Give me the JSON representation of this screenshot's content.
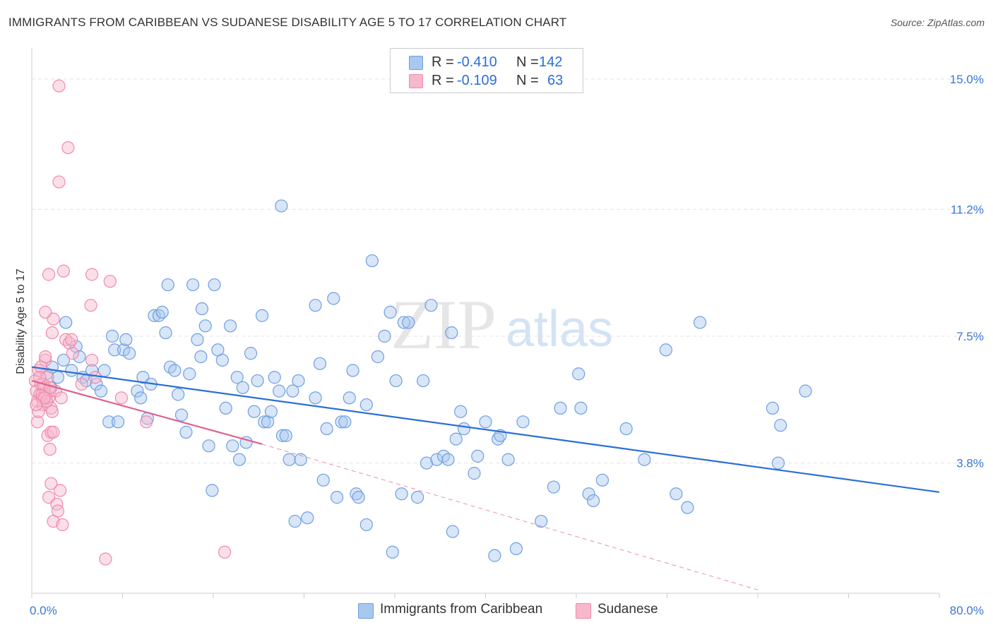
{
  "title": "IMMIGRANTS FROM CARIBBEAN VS SUDANESE DISABILITY AGE 5 TO 17 CORRELATION CHART",
  "source": "Source: ZipAtlas.com",
  "watermark": {
    "zip": "ZIP",
    "atlas": "atlas"
  },
  "legend": {
    "rows": [
      {
        "r_label": "R =",
        "r_value": "-0.410",
        "n_label": "N =",
        "n_value": "142"
      },
      {
        "r_label": "R =",
        "r_value": "-0.109",
        "n_label": "N =",
        "n_value": "63"
      }
    ]
  },
  "bottom_legend": [
    "Immigrants from Caribbean",
    "Sudanese"
  ],
  "colors": {
    "caribbean_fill": "#a9c8f0",
    "caribbean_stroke": "#6f9fe0",
    "caribbean_line": "#2a6fd6",
    "sudanese_fill": "#f7b8cc",
    "sudanese_stroke": "#ee8aab",
    "sudanese_line": "#e0608e",
    "tick_label": "#3a78d4"
  },
  "chart_data": {
    "type": "scatter",
    "title": "IMMIGRANTS FROM CARIBBEAN VS SUDANESE DISABILITY AGE 5 TO 17 CORRELATION CHART",
    "xlabel": "",
    "ylabel": "Disability Age 5 to 17",
    "xlim": [
      0,
      80
    ],
    "ylim": [
      0,
      15.7
    ],
    "x_tick_labels": [
      "0.0%",
      "80.0%"
    ],
    "y_ticks": [
      3.8,
      7.5,
      11.2,
      15.0
    ],
    "y_tick_labels": [
      "3.8%",
      "7.5%",
      "11.2%",
      "15.0%"
    ],
    "grid": true,
    "legend_position": "top-center",
    "series": [
      {
        "name": "Immigrants from Caribbean",
        "r": -0.41,
        "n": 142,
        "trend": {
          "x": [
            0,
            80
          ],
          "y": [
            6.6,
            2.95
          ]
        },
        "points": [
          [
            1.3,
            6.4
          ],
          [
            1.8,
            6.6
          ],
          [
            1.7,
            6.0
          ],
          [
            2.3,
            6.3
          ],
          [
            2.8,
            6.8
          ],
          [
            3.0,
            7.9
          ],
          [
            3.5,
            6.5
          ],
          [
            3.9,
            7.2
          ],
          [
            4.2,
            6.9
          ],
          [
            4.5,
            6.3
          ],
          [
            4.8,
            6.2
          ],
          [
            5.3,
            6.5
          ],
          [
            5.7,
            6.1
          ],
          [
            6.1,
            5.9
          ],
          [
            6.4,
            6.5
          ],
          [
            6.8,
            5.0
          ],
          [
            7.1,
            7.5
          ],
          [
            7.3,
            7.1
          ],
          [
            7.6,
            5.0
          ],
          [
            8.1,
            7.1
          ],
          [
            8.3,
            7.4
          ],
          [
            8.6,
            7.0
          ],
          [
            9.3,
            5.9
          ],
          [
            9.6,
            5.7
          ],
          [
            9.8,
            6.3
          ],
          [
            10.2,
            5.1
          ],
          [
            10.5,
            6.1
          ],
          [
            10.8,
            8.1
          ],
          [
            11.2,
            8.1
          ],
          [
            11.5,
            8.2
          ],
          [
            11.8,
            7.6
          ],
          [
            12.2,
            6.6
          ],
          [
            12.6,
            6.5
          ],
          [
            12.9,
            5.8
          ],
          [
            13.2,
            5.2
          ],
          [
            13.6,
            4.7
          ],
          [
            13.9,
            6.4
          ],
          [
            14.2,
            9.0
          ],
          [
            14.6,
            7.4
          ],
          [
            14.9,
            6.9
          ],
          [
            15.3,
            7.8
          ],
          [
            15.6,
            4.3
          ],
          [
            15.9,
            3.0
          ],
          [
            16.1,
            9.0
          ],
          [
            16.4,
            7.1
          ],
          [
            16.8,
            6.8
          ],
          [
            17.1,
            5.4
          ],
          [
            17.5,
            7.8
          ],
          [
            17.7,
            4.3
          ],
          [
            18.1,
            6.3
          ],
          [
            18.3,
            3.9
          ],
          [
            18.6,
            6.0
          ],
          [
            18.9,
            4.4
          ],
          [
            19.3,
            7.0
          ],
          [
            19.6,
            5.3
          ],
          [
            19.9,
            6.2
          ],
          [
            20.3,
            8.1
          ],
          [
            20.5,
            5.0
          ],
          [
            20.8,
            5.0
          ],
          [
            21.1,
            5.3
          ],
          [
            21.4,
            6.3
          ],
          [
            21.8,
            5.9
          ],
          [
            22.1,
            4.6
          ],
          [
            22.4,
            4.6
          ],
          [
            22.7,
            3.9
          ],
          [
            23.0,
            5.9
          ],
          [
            23.2,
            2.1
          ],
          [
            23.5,
            6.2
          ],
          [
            23.7,
            3.9
          ],
          [
            24.3,
            2.2
          ],
          [
            25.0,
            5.7
          ],
          [
            25.4,
            6.7
          ],
          [
            25.7,
            3.3
          ],
          [
            26.0,
            4.8
          ],
          [
            26.6,
            8.6
          ],
          [
            26.9,
            2.8
          ],
          [
            27.3,
            5.0
          ],
          [
            27.6,
            5.0
          ],
          [
            28.0,
            5.7
          ],
          [
            28.3,
            6.5
          ],
          [
            28.6,
            2.9
          ],
          [
            28.8,
            2.8
          ],
          [
            29.5,
            5.5
          ],
          [
            30.0,
            9.7
          ],
          [
            30.5,
            6.9
          ],
          [
            31.1,
            7.5
          ],
          [
            31.6,
            8.2
          ],
          [
            31.8,
            1.2
          ],
          [
            32.1,
            6.2
          ],
          [
            32.6,
            2.9
          ],
          [
            32.8,
            7.9
          ],
          [
            33.2,
            7.9
          ],
          [
            34.0,
            2.8
          ],
          [
            34.5,
            6.2
          ],
          [
            34.8,
            3.8
          ],
          [
            35.2,
            8.4
          ],
          [
            35.7,
            3.9
          ],
          [
            36.3,
            4.0
          ],
          [
            36.7,
            3.9
          ],
          [
            37.1,
            1.8
          ],
          [
            37.4,
            4.5
          ],
          [
            37.8,
            5.3
          ],
          [
            38.1,
            4.8
          ],
          [
            39.0,
            3.5
          ],
          [
            39.3,
            4.0
          ],
          [
            40.0,
            5.0
          ],
          [
            40.8,
            1.1
          ],
          [
            41.1,
            4.5
          ],
          [
            41.3,
            4.6
          ],
          [
            42.0,
            3.9
          ],
          [
            42.7,
            1.3
          ],
          [
            43.3,
            5.0
          ],
          [
            44.9,
            2.1
          ],
          [
            46.0,
            3.1
          ],
          [
            46.6,
            5.4
          ],
          [
            48.2,
            6.4
          ],
          [
            48.4,
            5.4
          ],
          [
            49.1,
            2.9
          ],
          [
            49.5,
            2.7
          ],
          [
            50.3,
            3.3
          ],
          [
            52.4,
            4.8
          ],
          [
            54.0,
            3.9
          ],
          [
            55.9,
            7.1
          ],
          [
            56.8,
            2.9
          ],
          [
            57.8,
            2.5
          ],
          [
            58.9,
            7.9
          ],
          [
            65.3,
            5.4
          ],
          [
            65.8,
            3.8
          ],
          [
            66.0,
            4.9
          ],
          [
            68.2,
            5.9
          ],
          [
            22.0,
            11.3
          ],
          [
            29.5,
            2.0
          ],
          [
            37.0,
            7.6
          ],
          [
            12.0,
            9.0
          ],
          [
            15.0,
            8.3
          ],
          [
            25.0,
            8.4
          ]
        ]
      },
      {
        "name": "Sudanese",
        "r": -0.109,
        "n": 63,
        "trend": {
          "x": [
            0,
            20.3
          ],
          "y": [
            6.2,
            4.35
          ]
        },
        "trend_extension": {
          "x": [
            20.3,
            64
          ],
          "y": [
            4.35,
            0.1
          ]
        },
        "points": [
          [
            0.3,
            6.2
          ],
          [
            0.4,
            5.9
          ],
          [
            0.5,
            5.6
          ],
          [
            0.6,
            6.5
          ],
          [
            0.7,
            5.8
          ],
          [
            0.8,
            6.1
          ],
          [
            0.9,
            5.7
          ],
          [
            1.0,
            5.5
          ],
          [
            1.1,
            6.0
          ],
          [
            1.2,
            5.8
          ],
          [
            1.3,
            5.6
          ],
          [
            1.4,
            6.3
          ],
          [
            1.5,
            5.7
          ],
          [
            1.6,
            5.9
          ],
          [
            1.7,
            5.4
          ],
          [
            0.5,
            5.0
          ],
          [
            0.6,
            5.3
          ],
          [
            0.9,
            5.8
          ],
          [
            1.0,
            6.1
          ],
          [
            1.2,
            6.8
          ],
          [
            1.3,
            5.6
          ],
          [
            1.4,
            4.6
          ],
          [
            1.5,
            2.8
          ],
          [
            1.6,
            4.2
          ],
          [
            1.7,
            3.2
          ],
          [
            1.7,
            4.7
          ],
          [
            1.8,
            5.3
          ],
          [
            1.8,
            7.6
          ],
          [
            1.9,
            2.1
          ],
          [
            1.9,
            8.0
          ],
          [
            2.1,
            5.9
          ],
          [
            2.2,
            2.6
          ],
          [
            2.3,
            2.4
          ],
          [
            2.4,
            12.0
          ],
          [
            2.5,
            3.0
          ],
          [
            2.6,
            5.7
          ],
          [
            2.7,
            2.0
          ],
          [
            3.0,
            7.4
          ],
          [
            3.2,
            13.0
          ],
          [
            3.3,
            7.3
          ],
          [
            3.5,
            7.4
          ],
          [
            1.2,
            8.2
          ],
          [
            1.5,
            9.3
          ],
          [
            2.8,
            9.4
          ],
          [
            5.3,
            9.3
          ],
          [
            6.9,
            9.1
          ],
          [
            5.2,
            8.4
          ],
          [
            5.3,
            6.8
          ],
          [
            5.6,
            6.3
          ],
          [
            7.9,
            5.7
          ],
          [
            10.1,
            5.0
          ],
          [
            17.0,
            1.2
          ],
          [
            6.5,
            1.0
          ],
          [
            2.4,
            14.8
          ],
          [
            1.2,
            6.9
          ],
          [
            0.8,
            6.6
          ],
          [
            1.1,
            5.7
          ],
          [
            1.6,
            6.0
          ],
          [
            0.4,
            5.5
          ],
          [
            1.9,
            4.7
          ],
          [
            3.6,
            7.0
          ],
          [
            4.4,
            6.1
          ],
          [
            0.7,
            6.3
          ]
        ]
      }
    ]
  }
}
